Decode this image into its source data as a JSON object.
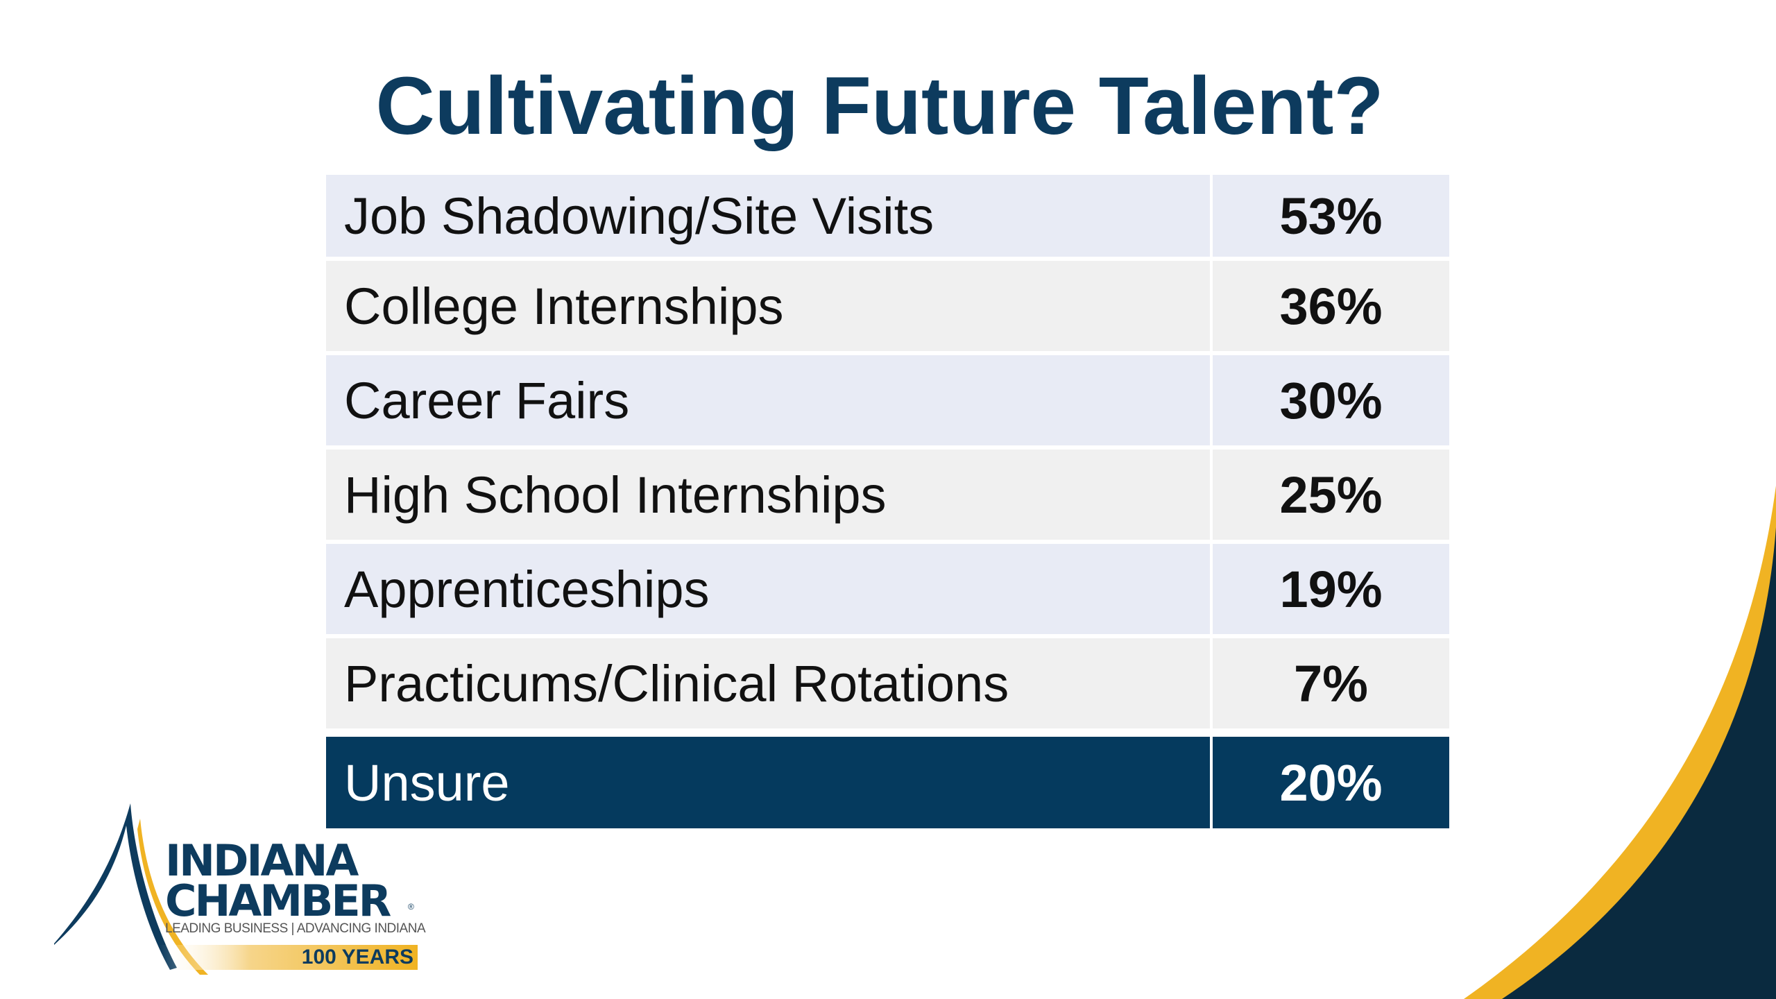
{
  "slide": {
    "title": "Cultivating Future Talent?",
    "rows": [
      {
        "label": "Job Shadowing/Site Visits",
        "value": "53%"
      },
      {
        "label": "College Internships",
        "value": "36%"
      },
      {
        "label": "Career Fairs",
        "value": "30%"
      },
      {
        "label": "High School Internships",
        "value": "25%"
      },
      {
        "label": "Apprenticeships",
        "value": "19%"
      },
      {
        "label": "Practicums/Clinical Rotations",
        "value": "7%"
      },
      {
        "label": "Unsure",
        "value": "20%"
      }
    ]
  },
  "logo": {
    "line1": "INDIANA",
    "line2": "CHAMBER",
    "registered": "®",
    "tagline": "LEADING BUSINESS | ADVANCING INDIANA",
    "years": "100 YEARS"
  },
  "colors": {
    "title": "#0d3b5e",
    "row_blue": "#e8ebf5",
    "row_grey": "#f0f0f0",
    "row_total": "#053a5e",
    "gold": "#f0b323",
    "navy": "#0a2a3f"
  }
}
